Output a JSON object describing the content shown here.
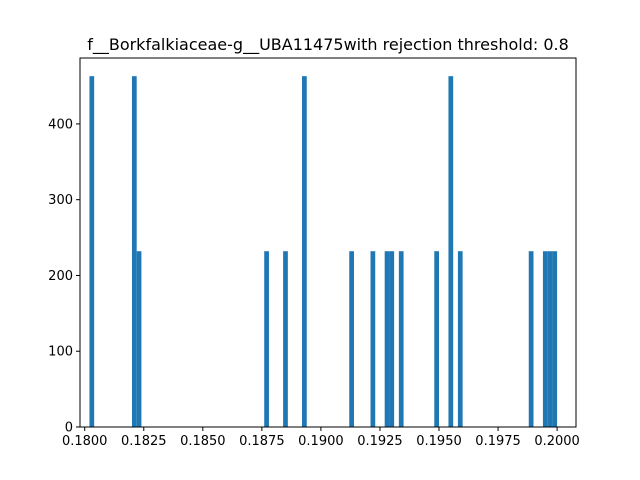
{
  "chart_data": {
    "type": "bar",
    "title": "f__Borkfalkiaceae-g__UBA11475with rejection threshold: 0.8",
    "xlabel": "",
    "ylabel": "",
    "xlim": [
      0.1798,
      0.2008
    ],
    "ylim": [
      0,
      487
    ],
    "bin_width": 0.0002,
    "xticks": [
      0.18,
      0.1825,
      0.185,
      0.1875,
      0.19,
      0.1925,
      0.195,
      0.1975,
      0.2
    ],
    "xtick_labels": [
      "0.1800",
      "0.1825",
      "0.1850",
      "0.1875",
      "0.1900",
      "0.1925",
      "0.1950",
      "0.1975",
      "0.2000"
    ],
    "yticks": [
      0,
      100,
      200,
      300,
      400
    ],
    "ytick_labels": [
      "0",
      "100",
      "200",
      "300",
      "400"
    ],
    "grid": false,
    "legend": "none",
    "bar_color": "#1f77b4",
    "bars": [
      {
        "x": 0.1803,
        "value": 463
      },
      {
        "x": 0.1821,
        "value": 463
      },
      {
        "x": 0.1823,
        "value": 232
      },
      {
        "x": 0.1877,
        "value": 232
      },
      {
        "x": 0.1885,
        "value": 232
      },
      {
        "x": 0.1893,
        "value": 463
      },
      {
        "x": 0.1913,
        "value": 232
      },
      {
        "x": 0.1922,
        "value": 232
      },
      {
        "x": 0.1928,
        "value": 232
      },
      {
        "x": 0.193,
        "value": 232
      },
      {
        "x": 0.1934,
        "value": 232
      },
      {
        "x": 0.1949,
        "value": 232
      },
      {
        "x": 0.1955,
        "value": 463
      },
      {
        "x": 0.1959,
        "value": 232
      },
      {
        "x": 0.1989,
        "value": 232
      },
      {
        "x": 0.1995,
        "value": 232
      },
      {
        "x": 0.1997,
        "value": 232
      },
      {
        "x": 0.1999,
        "value": 232
      }
    ]
  }
}
